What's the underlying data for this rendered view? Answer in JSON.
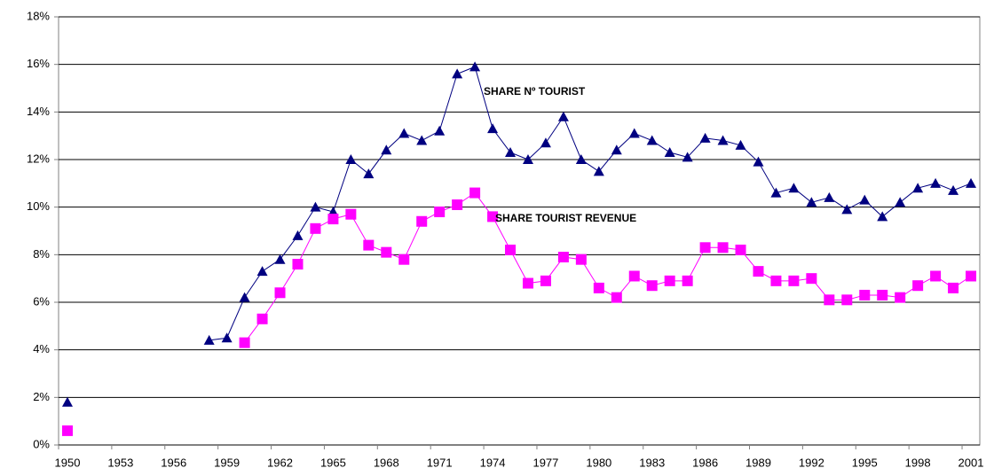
{
  "chart_data": {
    "type": "line",
    "categories": [
      "1950",
      null,
      null,
      "1953",
      null,
      null,
      "1956",
      null,
      null,
      "1959",
      null,
      null,
      "1962",
      null,
      null,
      "1965",
      null,
      null,
      "1968",
      null,
      null,
      "1971",
      null,
      null,
      "1974",
      null,
      null,
      "1977",
      null,
      null,
      "1980",
      null,
      null,
      "1983",
      null,
      null,
      "1986",
      null,
      null,
      "1989",
      null,
      null,
      "1992",
      null,
      null,
      "1995",
      null,
      null,
      "1998",
      null,
      null,
      "2001"
    ],
    "series": [
      {
        "name": "SHARE Nº TOURIST",
        "color": "#000080",
        "marker": "triangle",
        "values": [
          1.8,
          null,
          null,
          null,
          null,
          null,
          null,
          null,
          4.4,
          4.5,
          6.2,
          7.3,
          7.8,
          8.8,
          10.0,
          9.8,
          12.0,
          11.4,
          12.4,
          13.1,
          12.8,
          13.2,
          15.6,
          15.9,
          13.3,
          12.3,
          12.0,
          12.7,
          13.8,
          12.0,
          11.5,
          12.4,
          13.1,
          12.8,
          12.3,
          12.1,
          12.9,
          12.8,
          12.6,
          11.9,
          10.6,
          10.8,
          10.2,
          10.4,
          9.9,
          10.3,
          9.6,
          10.2,
          10.8,
          11.0,
          10.7,
          11.0
        ]
      },
      {
        "name": "SHARE TOURIST REVENUE",
        "color": "#ff00ff",
        "marker": "square",
        "values": [
          0.6,
          null,
          null,
          null,
          null,
          null,
          null,
          null,
          null,
          null,
          4.3,
          5.3,
          6.4,
          7.6,
          9.1,
          9.5,
          9.7,
          8.4,
          8.1,
          7.8,
          9.4,
          9.8,
          10.1,
          10.6,
          9.6,
          8.2,
          6.8,
          6.9,
          7.9,
          7.8,
          6.6,
          6.2,
          7.1,
          6.7,
          6.9,
          6.9,
          8.3,
          8.3,
          8.2,
          7.3,
          6.9,
          6.9,
          7.0,
          6.1,
          6.1,
          6.3,
          6.3,
          6.2,
          6.7,
          7.1,
          6.6,
          7.1
        ]
      }
    ],
    "ylim": [
      0,
      18
    ],
    "yticks": [
      {
        "value": 0,
        "label": "0%"
      },
      {
        "value": 2,
        "label": "2%"
      },
      {
        "value": 4,
        "label": "4%"
      },
      {
        "value": 6,
        "label": "6%"
      },
      {
        "value": 8,
        "label": "8%"
      },
      {
        "value": 10,
        "label": "10%"
      },
      {
        "value": 12,
        "label": "12%"
      },
      {
        "value": 14,
        "label": "14%"
      },
      {
        "value": 16,
        "label": "16%"
      },
      {
        "value": 18,
        "label": "18%"
      }
    ],
    "grid": true
  }
}
